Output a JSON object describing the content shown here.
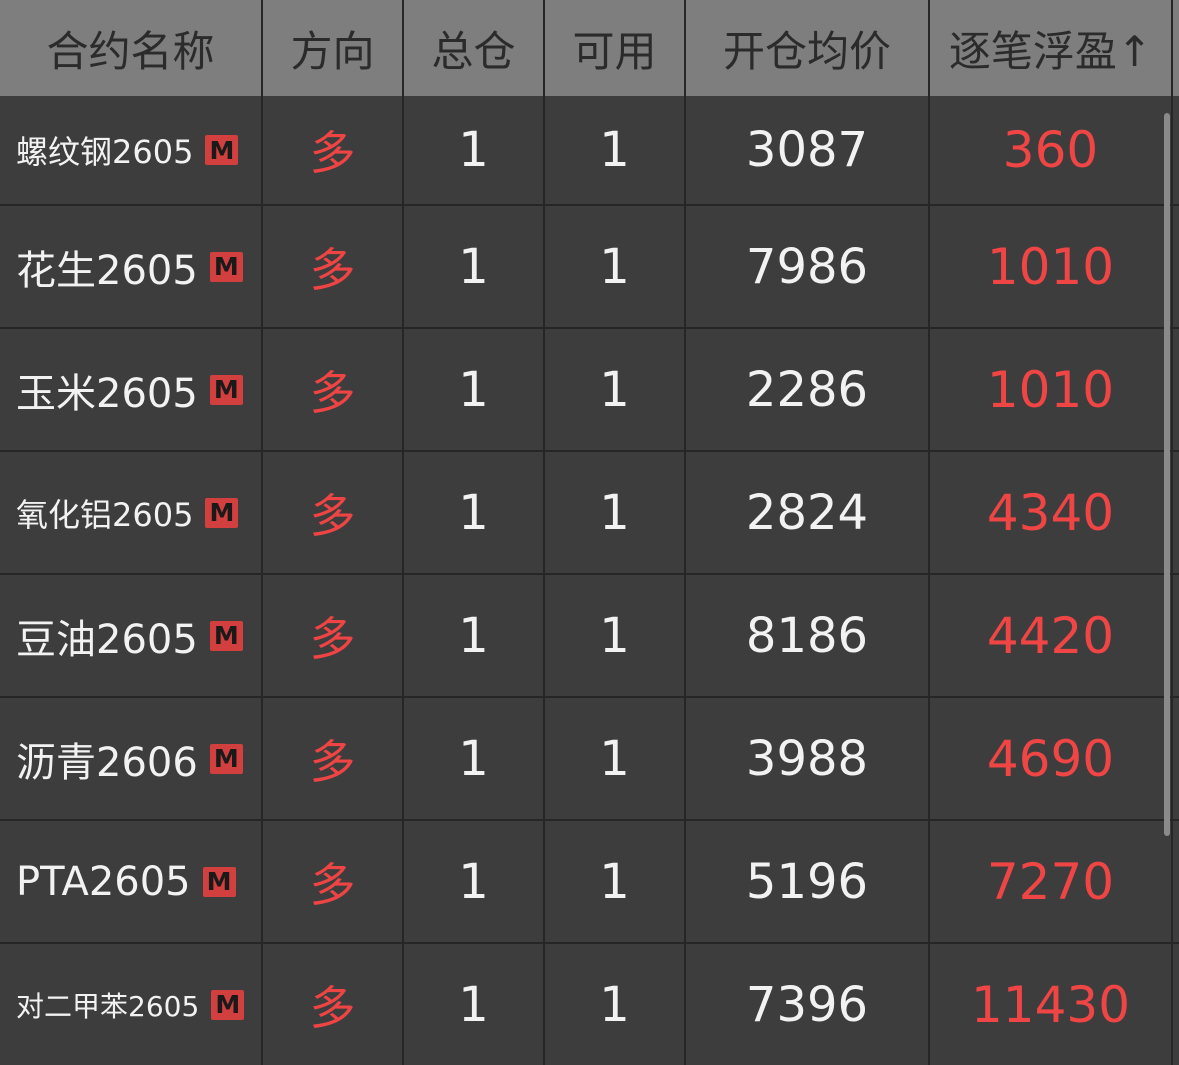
{
  "header": {
    "name": "合约名称",
    "direction": "方向",
    "total": "总仓",
    "available": "可用",
    "avg_price": "开仓均价",
    "float_pnl": "逐笔浮盈↑"
  },
  "badge": "M",
  "colors": {
    "header_bg": "#7e7e7e",
    "row_bg": "#3d3d3d",
    "long": "#ee4444",
    "profit": "#f04545",
    "badge": "#d23f3f"
  },
  "rows": [
    {
      "name": "螺纹钢2605",
      "dir": "多",
      "total": "1",
      "avail": "1",
      "price": "3087",
      "pnl": "360"
    },
    {
      "name": "花生2605",
      "dir": "多",
      "total": "1",
      "avail": "1",
      "price": "7986",
      "pnl": "1010"
    },
    {
      "name": "玉米2605",
      "dir": "多",
      "total": "1",
      "avail": "1",
      "price": "2286",
      "pnl": "1010"
    },
    {
      "name": "氧化铝2605",
      "dir": "多",
      "total": "1",
      "avail": "1",
      "price": "2824",
      "pnl": "4340"
    },
    {
      "name": "豆油2605",
      "dir": "多",
      "total": "1",
      "avail": "1",
      "price": "8186",
      "pnl": "4420"
    },
    {
      "name": "沥青2606",
      "dir": "多",
      "total": "1",
      "avail": "1",
      "price": "3988",
      "pnl": "4690"
    },
    {
      "name": "PTA2605",
      "dir": "多",
      "total": "1",
      "avail": "1",
      "price": "5196",
      "pnl": "7270"
    },
    {
      "name": "对二甲苯2605",
      "dir": "多",
      "total": "1",
      "avail": "1",
      "price": "7396",
      "pnl": "11430"
    }
  ]
}
